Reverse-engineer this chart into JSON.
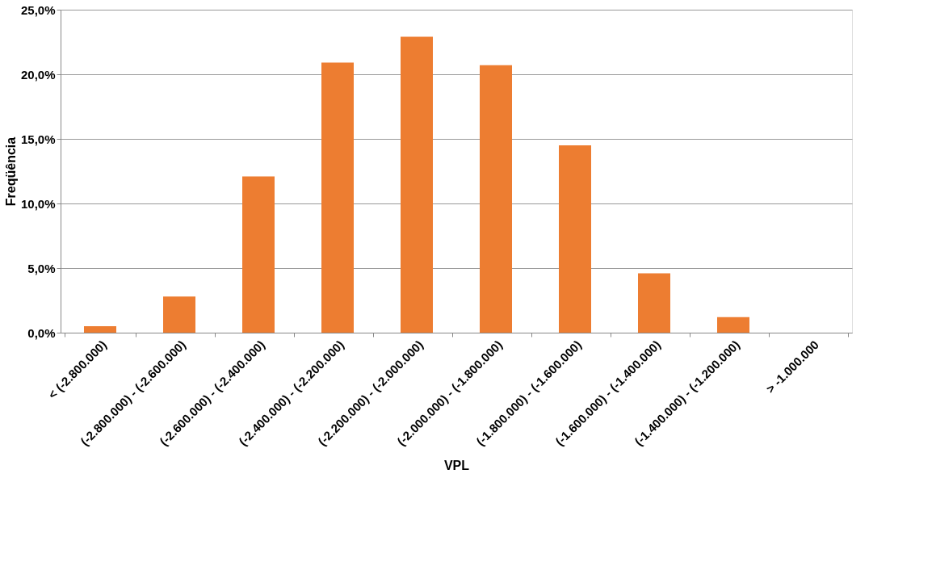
{
  "chart_data": {
    "type": "bar",
    "xlabel": "VPL",
    "ylabel": "Freqüência",
    "categories": [
      "< (-2.800.000)",
      "(-2.800.000) - (-2.600.000)",
      "(-2.600.000) - (-2.400.000)",
      "(-2.400.000) - (-2.200.000)",
      "(-2.200.000) - (-2.000.000)",
      "(-2.000.000) - (-1.800.000)",
      "(-1.800.000) - (-1.600.000)",
      "(-1.600.000) - (-1.400.000)",
      "(-1.400.000) - (-1.200.000)",
      "> -1.000.000"
    ],
    "values": [
      0.5,
      2.8,
      12.1,
      20.9,
      22.9,
      20.7,
      14.5,
      4.6,
      1.2,
      0
    ],
    "color": "#ed7d31",
    "ylim": [
      0,
      25
    ],
    "yticks": [
      {
        "value": 0,
        "label": "0,0%"
      },
      {
        "value": 5,
        "label": "5,0%"
      },
      {
        "value": 10,
        "label": "10,0%"
      },
      {
        "value": 15,
        "label": "15,0%"
      },
      {
        "value": 20,
        "label": "20,0%"
      },
      {
        "value": 25,
        "label": "25,0%"
      }
    ],
    "grid": "y"
  }
}
